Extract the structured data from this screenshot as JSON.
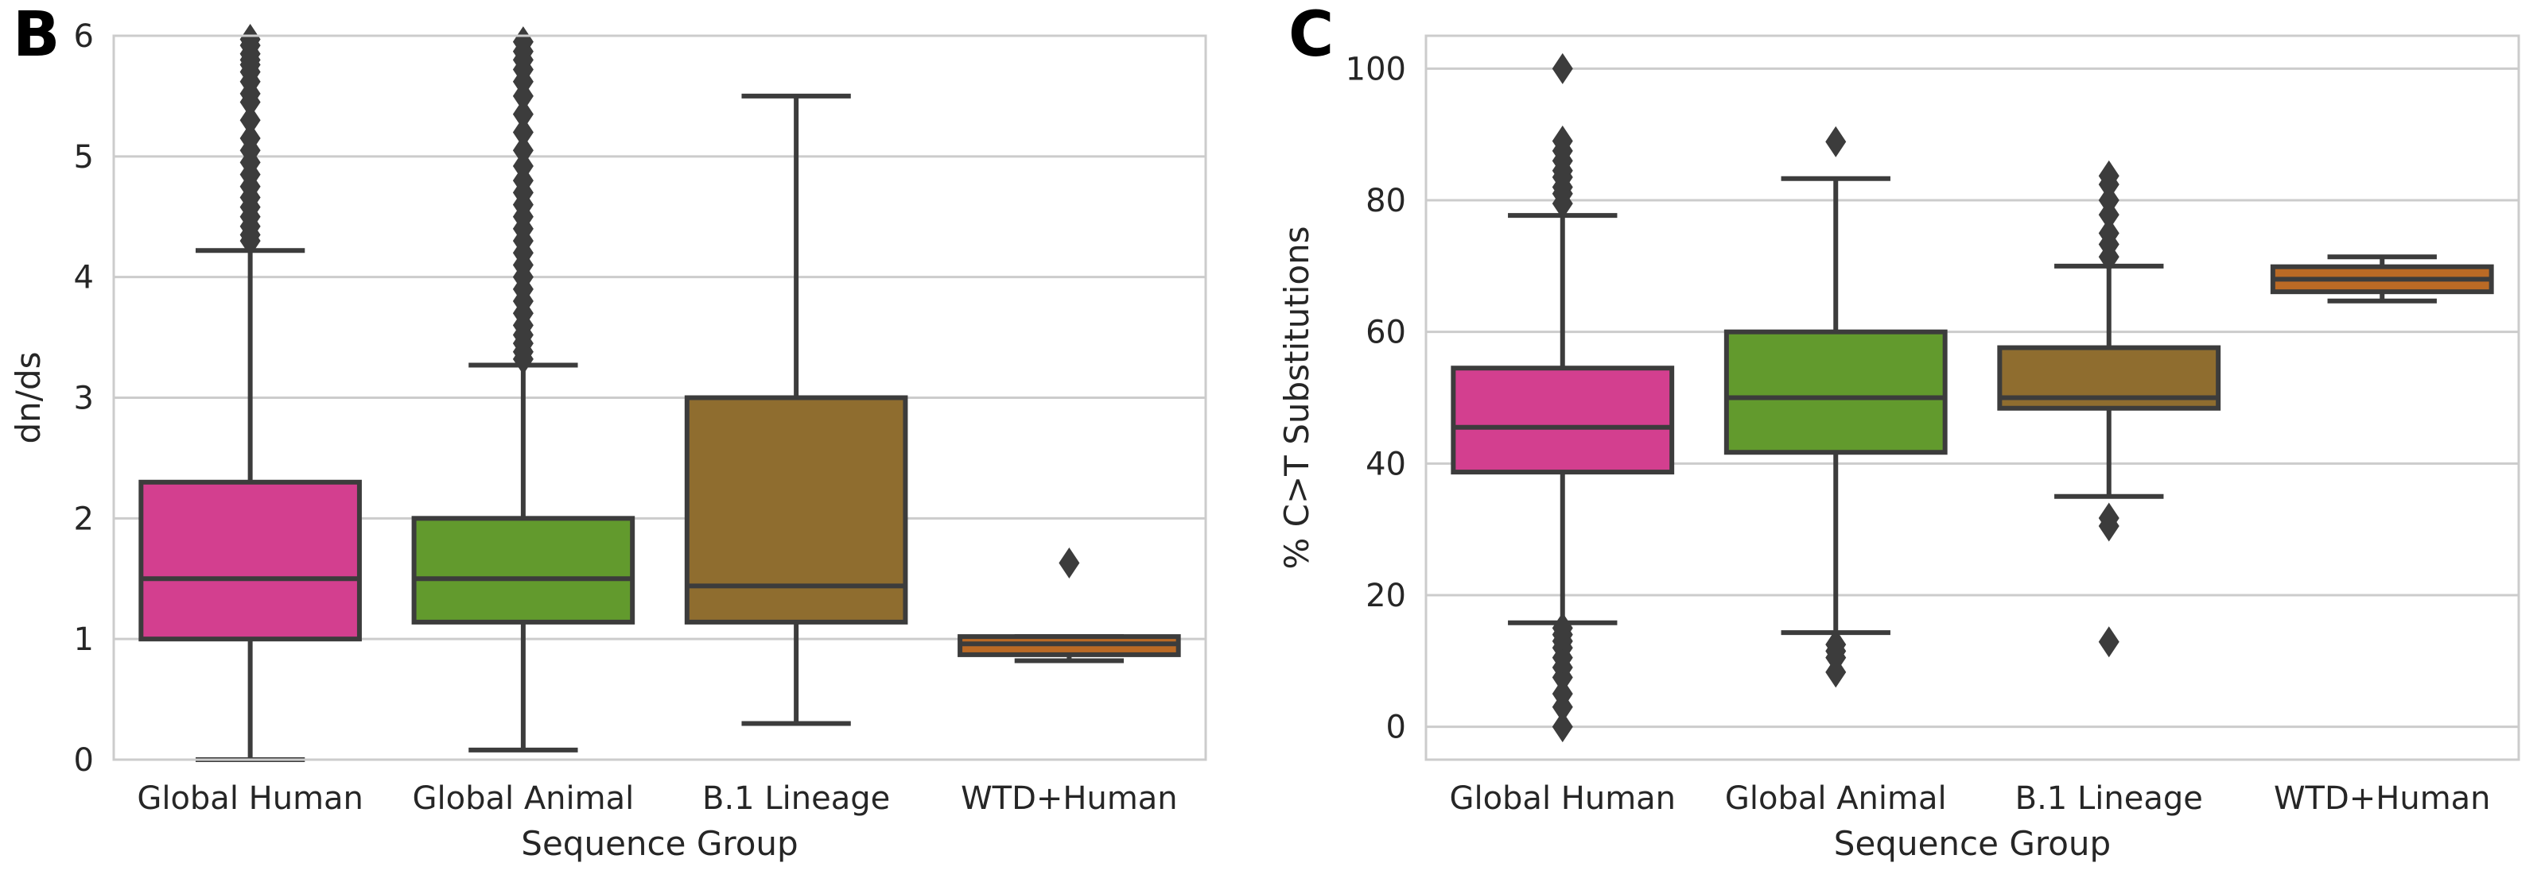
{
  "chart_data": [
    {
      "panel": "B",
      "type": "box",
      "xlabel": "Sequence Group",
      "ylabel": "dn/ds",
      "ylim": [
        0,
        6
      ],
      "yticks": [
        0,
        1,
        2,
        3,
        4,
        5,
        6
      ],
      "grid": "horizontal",
      "categories": [
        "Global Human",
        "Global Animal",
        "B.1 Lineage",
        "WTD+Human"
      ],
      "boxes": [
        {
          "name": "Global Human",
          "color": "#d33f8f",
          "whislo": 0.0,
          "q1": 1.0,
          "median": 1.5,
          "q3": 2.3,
          "whishi": 4.22,
          "fliers": [
            4.3,
            4.35,
            4.42,
            4.5,
            4.58,
            4.66,
            4.75,
            4.85,
            4.95,
            5.05,
            5.15,
            5.3,
            5.45,
            5.52,
            5.62,
            5.7,
            5.76,
            5.8,
            5.85,
            5.92,
            5.97
          ]
        },
        {
          "name": "Global Animal",
          "color": "#629a2d",
          "whislo": 0.08,
          "q1": 1.14,
          "median": 1.5,
          "q3": 2.0,
          "whishi": 3.27,
          "fliers": [
            3.32,
            3.38,
            3.45,
            3.52,
            3.6,
            3.7,
            3.8,
            3.9,
            4.0,
            4.1,
            4.2,
            4.3,
            4.4,
            4.5,
            4.6,
            4.7,
            4.8,
            4.92,
            5.05,
            5.2,
            5.35,
            5.5,
            5.62,
            5.72,
            5.8,
            5.87,
            5.95
          ]
        },
        {
          "name": "B.1 Lineage",
          "color": "#8f6d2f",
          "whislo": 0.3,
          "q1": 1.14,
          "median": 1.44,
          "q3": 3.0,
          "whishi": 5.5,
          "fliers": []
        },
        {
          "name": "WTD+Human",
          "color": "#bb6a25",
          "whislo": 0.82,
          "q1": 0.87,
          "median": 0.96,
          "q3": 1.02,
          "whishi": 1.02,
          "fliers": [
            1.63
          ]
        }
      ]
    },
    {
      "panel": "C",
      "type": "box",
      "xlabel": "Sequence Group",
      "ylabel": "% C>T Substitutions",
      "ylim": [
        -5,
        105
      ],
      "yticks": [
        0,
        20,
        40,
        60,
        80,
        100
      ],
      "grid": "horizontal",
      "categories": [
        "Global Human",
        "Global Animal",
        "B.1 Lineage",
        "WTD+Human"
      ],
      "boxes": [
        {
          "name": "Global Human",
          "color": "#d33f8f",
          "whislo": 15.8,
          "q1": 38.7,
          "median": 45.5,
          "q3": 54.5,
          "whishi": 77.7,
          "fliers": [
            0,
            3,
            5,
            7.5,
            9,
            10.5,
            12,
            13,
            14,
            15,
            79.5,
            81,
            82,
            83.5,
            84.5,
            86,
            87.5,
            89,
            100
          ]
        },
        {
          "name": "Global Animal",
          "color": "#629a2d",
          "whislo": 14.3,
          "q1": 41.7,
          "median": 50.0,
          "q3": 60.0,
          "whishi": 83.3,
          "fliers": [
            8.3,
            10.5,
            11.5,
            12.5,
            88.9
          ]
        },
        {
          "name": "B.1 Lineage",
          "color": "#8f6d2f",
          "whislo": 35.0,
          "q1": 48.4,
          "median": 50.0,
          "q3": 57.6,
          "whishi": 70.0,
          "fliers": [
            12.9,
            30.5,
            31.7,
            71.4,
            73.3,
            75,
            77.8,
            80,
            82.4,
            83.7
          ]
        },
        {
          "name": "WTD+Human",
          "color": "#bb6a25",
          "whislo": 64.7,
          "q1": 66.1,
          "median": 68.0,
          "q3": 69.9,
          "whishi": 71.4,
          "fliers": []
        }
      ]
    }
  ]
}
